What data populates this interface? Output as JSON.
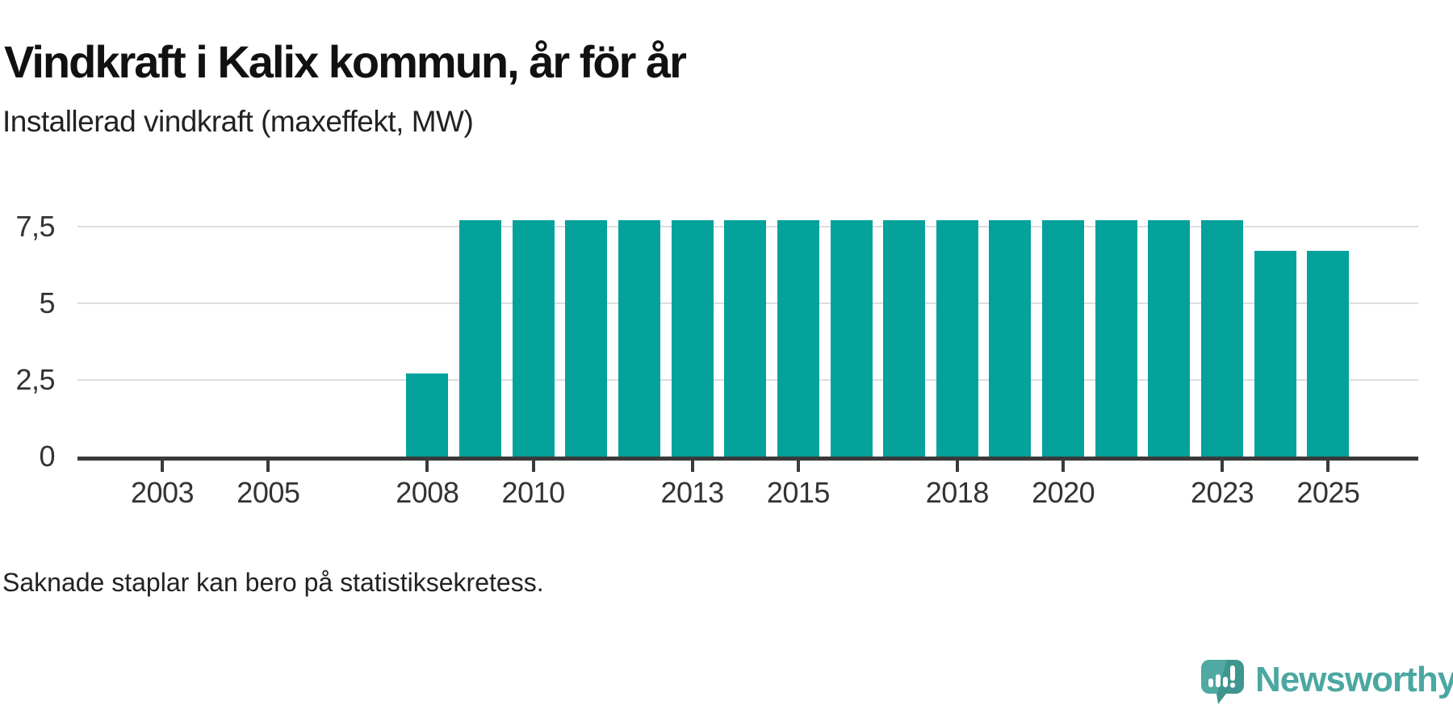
{
  "header": {
    "title": "Vindkraft i Kalix kommun, år för år",
    "subtitle": "Installerad vindkraft (maxeffekt, MW)"
  },
  "chart_data": {
    "type": "bar",
    "title": "Vindkraft i Kalix kommun, år för år",
    "subtitle": "Installerad vindkraft (maxeffekt, MW)",
    "ylabel": "MW",
    "xlabel": "",
    "categories": [
      2008,
      2009,
      2010,
      2011,
      2012,
      2013,
      2014,
      2015,
      2016,
      2017,
      2018,
      2019,
      2020,
      2021,
      2022,
      2023,
      2024,
      2025
    ],
    "values": [
      2.7,
      7.7,
      7.7,
      7.7,
      7.7,
      7.7,
      7.7,
      7.7,
      7.7,
      7.7,
      7.7,
      7.7,
      7.7,
      7.7,
      7.7,
      7.7,
      6.7,
      6.7
    ],
    "x_ticks": [
      {
        "year": 2003,
        "label": "2003"
      },
      {
        "year": 2005,
        "label": "2005"
      },
      {
        "year": 2008,
        "label": "2008"
      },
      {
        "year": 2010,
        "label": "2010"
      },
      {
        "year": 2013,
        "label": "2013"
      },
      {
        "year": 2015,
        "label": "2015"
      },
      {
        "year": 2018,
        "label": "2018"
      },
      {
        "year": 2020,
        "label": "2020"
      },
      {
        "year": 2023,
        "label": "2023"
      },
      {
        "year": 2025,
        "label": "2025"
      }
    ],
    "y_ticks": [
      {
        "value": 0,
        "label": "0"
      },
      {
        "value": 2.5,
        "label": "2,5"
      },
      {
        "value": 5,
        "label": "5"
      },
      {
        "value": 7.5,
        "label": "7,5"
      }
    ],
    "xlim": [
      2001.4,
      2026.7
    ],
    "ylim": [
      0,
      8.8
    ],
    "grid": true,
    "legend": "none",
    "bar_color": "#05a29b"
  },
  "footer": {
    "note": "Saknade staplar kan bero på statistiksekretess."
  },
  "branding": {
    "name": "Newsworthy",
    "icon": "newsworthy-speech-bubble-chart-icon",
    "color": "#4ba7a1"
  },
  "colors": {
    "bar": "#05a29b",
    "axis": "#3a3a3a",
    "grid": "#dddddd",
    "text": "#333333",
    "title": "#111111"
  }
}
